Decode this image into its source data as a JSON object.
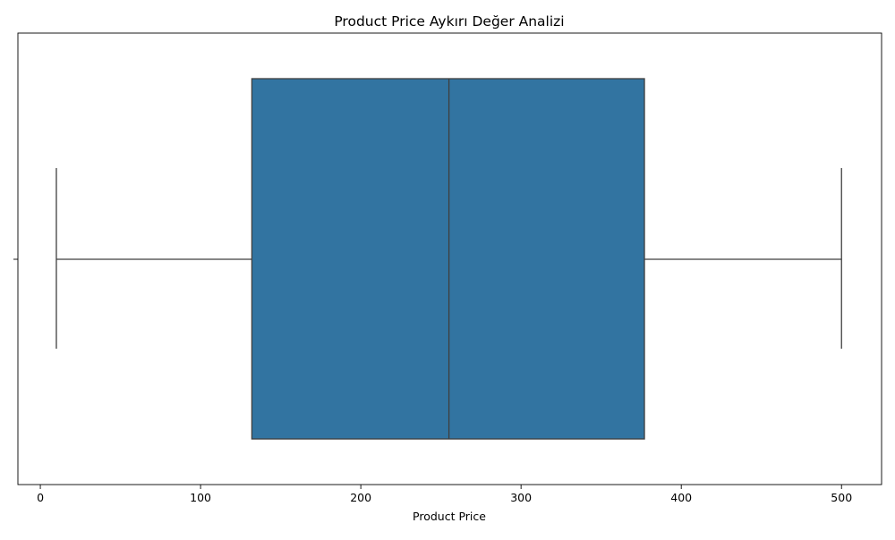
{
  "chart_data": {
    "type": "box",
    "title": "Product Price Aykırı Değer Analizi",
    "xlabel": "Product Price",
    "ylabel": "",
    "xlim": [
      -14,
      525
    ],
    "x_ticks": [
      0,
      100,
      200,
      300,
      400,
      500
    ],
    "x_tick_labels": [
      "0",
      "100",
      "200",
      "300",
      "400",
      "500"
    ],
    "grid": false,
    "orientation": "horizontal",
    "box": {
      "min": 10,
      "q1": 132,
      "median": 255,
      "q3": 377,
      "max": 500
    },
    "colors": {
      "box_fill": "#3274a1",
      "line": "#3f3f3f",
      "axes": "#000000"
    }
  }
}
